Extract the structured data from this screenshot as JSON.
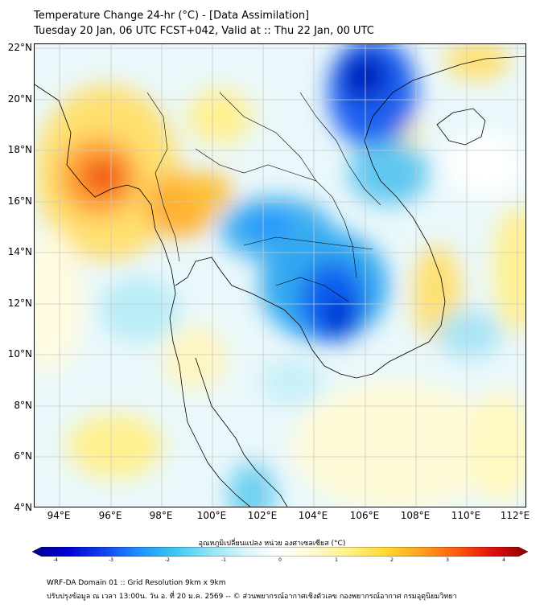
{
  "title": {
    "line1": "Temperature Change 24-hr (°C) - [Data Assimilation]",
    "line2": "Tuesday 20 Jan, 06 UTC FCST+042, Valid at :: Thu 22 Jan, 00 UTC"
  },
  "lat_labels": [
    "22°N",
    "20°N",
    "18°N",
    "16°N",
    "14°N",
    "12°N",
    "10°N",
    "8°N",
    "6°N",
    "4°N"
  ],
  "lon_labels": [
    "94°E",
    "96°E",
    "98°E",
    "100°E",
    "102°E",
    "104°E",
    "106°E",
    "108°E",
    "110°E",
    "112°E"
  ],
  "colorbar": {
    "label": "อุณหภูมิเปลี่ยนแปลง หน่วย องศาเซลเซียส (°C)",
    "ticks": [
      "-4",
      "-3",
      "-2",
      "-1",
      "0",
      "1",
      "2",
      "3",
      "4"
    ],
    "colors": [
      "#00008c",
      "#0000d8",
      "#1240f0",
      "#1e90ff",
      "#39c8f0",
      "#8ee4f5",
      "#d8f5fa",
      "#ffffff",
      "#fff8cc",
      "#fff080",
      "#ffd830",
      "#ffa020",
      "#ff5a10",
      "#e01010",
      "#8c0000"
    ]
  },
  "footer": {
    "line1": "WRF-DA Domain 01 :: Grid Resolution 9km x 9km",
    "line2": "ปรับปรุงข้อมูล ณ เวลา 13:00น. วัน อ. ที่ 20 ม.ค. 2569 -- © ส่วนพยากรณ์อากาศเชิงตัวเลข กองพยากรณ์อากาศ กรมอุตุนิยมวิทยา"
  }
}
